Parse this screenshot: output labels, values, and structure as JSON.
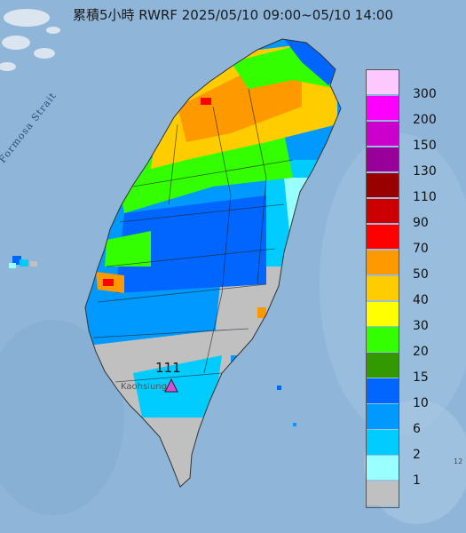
{
  "title": "累積5小時 RWRF 2025/05/10 09:00~05/10 14:00",
  "strait_label": "Formosa Strait",
  "marker": {
    "label": "111",
    "color": "#d64fd6"
  },
  "city_label": "Kaohsiung",
  "corner_text": "12",
  "legend": [
    {
      "label": "300",
      "color": "#fdc8fd"
    },
    {
      "label": "200",
      "color": "#fd00fd"
    },
    {
      "label": "150",
      "color": "#cc00cc"
    },
    {
      "label": "130",
      "color": "#990099"
    },
    {
      "label": "110",
      "color": "#990000"
    },
    {
      "label": "90",
      "color": "#cc0000"
    },
    {
      "label": "70",
      "color": "#ff0000"
    },
    {
      "label": "50",
      "color": "#ff9900"
    },
    {
      "label": "40",
      "color": "#ffcc00"
    },
    {
      "label": "30",
      "color": "#ffff00"
    },
    {
      "label": "20",
      "color": "#33ff00"
    },
    {
      "label": "15",
      "color": "#339900"
    },
    {
      "label": "10",
      "color": "#0066ff"
    },
    {
      "label": "6",
      "color": "#0099ff"
    },
    {
      "label": "2",
      "color": "#00ccff"
    },
    {
      "label": "1",
      "color": "#99ffff"
    },
    {
      "label": "",
      "color": "#c0c0c0"
    }
  ]
}
